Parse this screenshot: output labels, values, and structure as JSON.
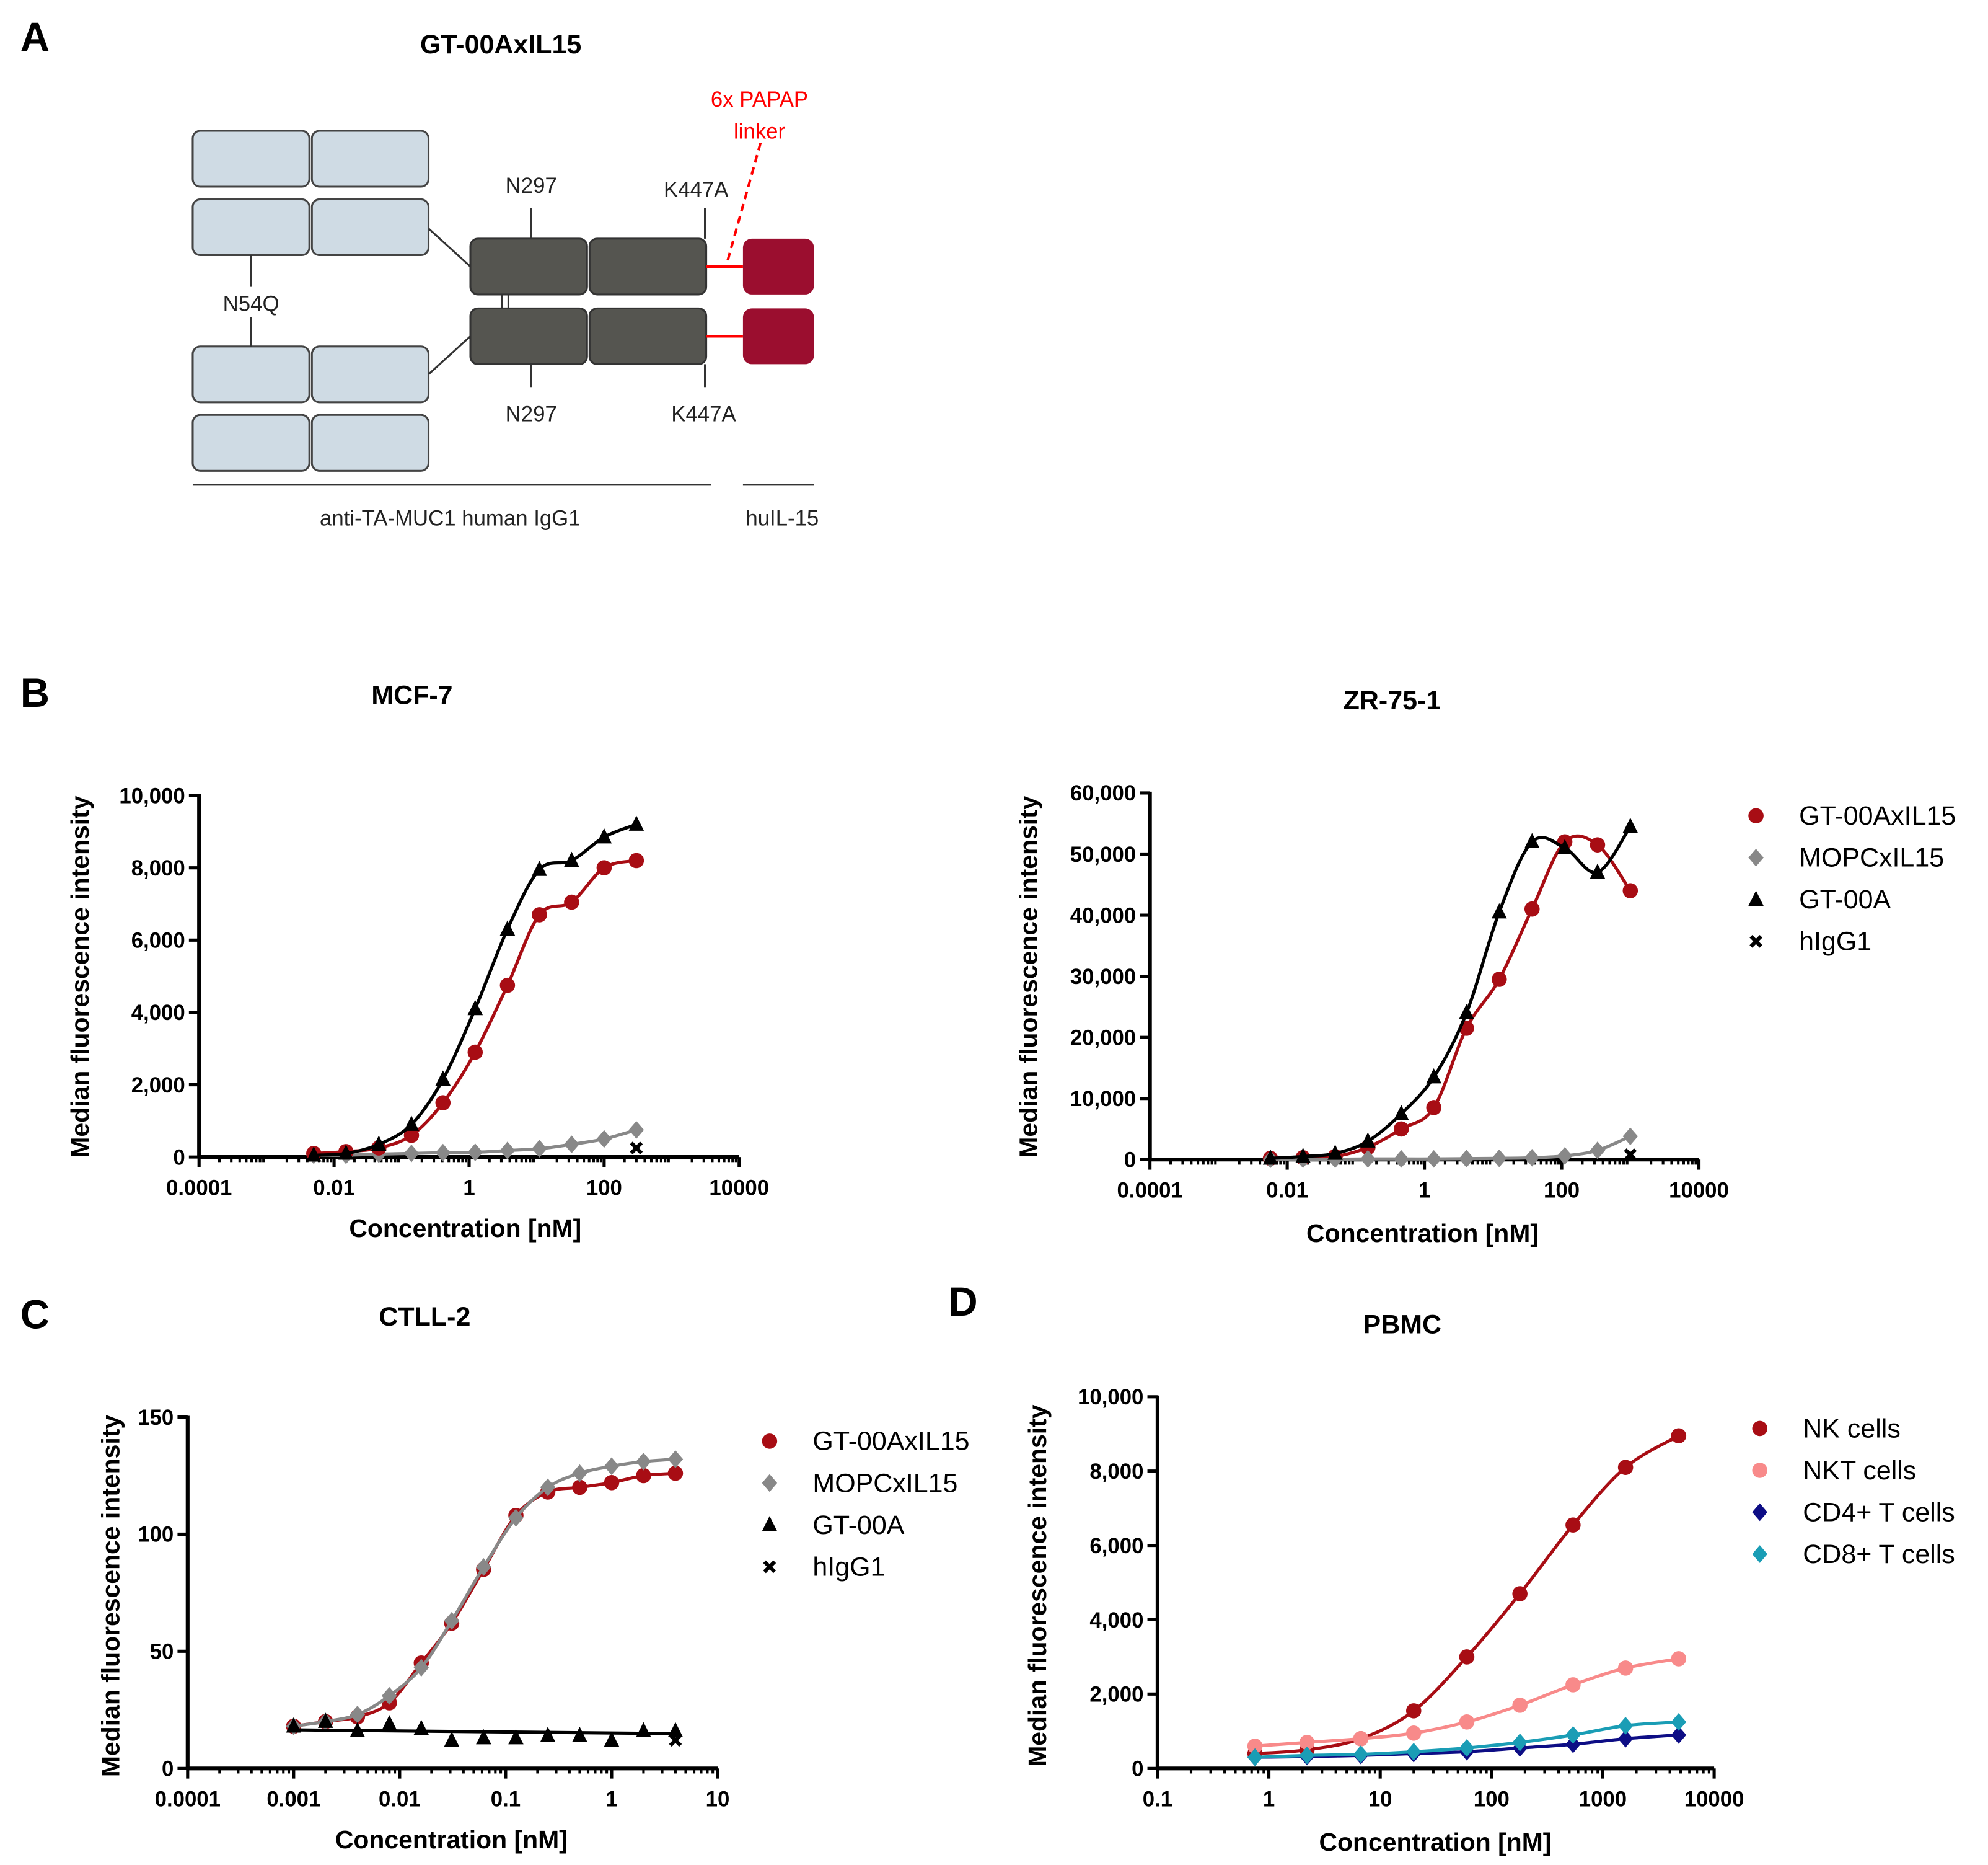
{
  "panels": {
    "a": "A",
    "b": "B",
    "c": "C",
    "d": "D"
  },
  "diagram": {
    "title": "GT-00AxIL15",
    "linker_line1": "6x PAPAP",
    "linker_line2": "linker",
    "n297_top": "N297",
    "k447a_top": "K447A",
    "n54q": "N54Q",
    "n297_bottom": "N297",
    "k447a_bottom": "K447A",
    "igg_label": "anti-TA-MUC1 human IgG1",
    "il15_label": "huIL-15",
    "colors": {
      "fab": "#cfdbe4",
      "fc": "#555550",
      "il15": "#9b0e2f",
      "linker": "#ff0000"
    }
  },
  "chart_data": [
    {
      "type": "scatter",
      "title": "MCF-7",
      "xlabel": "Concentration [nM]",
      "ylabel": "Median fluorescence intensity",
      "xscale": "log",
      "xlim": [
        0.0001,
        10000
      ],
      "ylim": [
        0,
        10000
      ],
      "xticks": [
        {
          "v": 0.0001,
          "label": "0.0001"
        },
        {
          "v": 0.01,
          "label": "0.01"
        },
        {
          "v": 1,
          "label": "1"
        },
        {
          "v": 100,
          "label": "100"
        },
        {
          "v": 10000,
          "label": "10000"
        }
      ],
      "yticks": [
        {
          "v": 0,
          "label": "0"
        },
        {
          "v": 2000,
          "label": "2,000"
        },
        {
          "v": 4000,
          "label": "4,000"
        },
        {
          "v": 6000,
          "label": "6,000"
        },
        {
          "v": 8000,
          "label": "8,000"
        },
        {
          "v": 10000,
          "label": "10,000"
        }
      ],
      "legend": null,
      "series": [
        {
          "name": "MOPCxIL15",
          "marker": "diamond",
          "color": "#888888",
          "fit": true,
          "x": [
            0.005,
            0.015,
            0.046,
            0.14,
            0.41,
            1.23,
            3.7,
            11,
            33,
            100,
            300
          ],
          "y": [
            50,
            50,
            80,
            100,
            120,
            130,
            180,
            230,
            350,
            500,
            750
          ]
        },
        {
          "name": "GT-00AxIL15",
          "marker": "circle",
          "color": "#a80d14",
          "fit": true,
          "x": [
            0.005,
            0.015,
            0.046,
            0.14,
            0.41,
            1.23,
            3.7,
            11,
            33,
            100,
            300
          ],
          "y": [
            100,
            150,
            250,
            600,
            1500,
            2900,
            4750,
            6700,
            7050,
            8000,
            8200
          ]
        },
        {
          "name": "GT-00A",
          "marker": "triangle",
          "color": "#000000",
          "fit": true,
          "x": [
            0.005,
            0.015,
            0.046,
            0.14,
            0.41,
            1.23,
            3.7,
            11,
            33,
            100,
            300
          ],
          "y": [
            50,
            100,
            350,
            900,
            2150,
            4100,
            6300,
            7950,
            8200,
            8850,
            9200
          ]
        },
        {
          "name": "hIgG1",
          "marker": "x",
          "color": "#000000",
          "fit": false,
          "x": [
            300
          ],
          "y": [
            250
          ]
        }
      ]
    },
    {
      "type": "scatter",
      "title": "ZR-75-1",
      "xlabel": "Concentration [nM]",
      "ylabel": "Median fluorescence intensity",
      "xscale": "log",
      "xlim": [
        0.0001,
        10000
      ],
      "ylim": [
        0,
        60000
      ],
      "xticks": [
        {
          "v": 0.0001,
          "label": "0.0001"
        },
        {
          "v": 0.01,
          "label": "0.01"
        },
        {
          "v": 1,
          "label": "1"
        },
        {
          "v": 100,
          "label": "100"
        },
        {
          "v": 10000,
          "label": "10000"
        }
      ],
      "yticks": [
        {
          "v": 0,
          "label": "0"
        },
        {
          "v": 10000,
          "label": "10,000"
        },
        {
          "v": 20000,
          "label": "20,000"
        },
        {
          "v": 30000,
          "label": "30,000"
        },
        {
          "v": 40000,
          "label": "40,000"
        },
        {
          "v": 50000,
          "label": "50,000"
        },
        {
          "v": 60000,
          "label": "60,000"
        }
      ],
      "legend": "right",
      "series": [
        {
          "name": "GT-00AxIL15",
          "marker": "circle",
          "color": "#a80d14",
          "fit": true,
          "x": [
            0.0057,
            0.017,
            0.05,
            0.15,
            0.46,
            1.37,
            4.1,
            12.3,
            37,
            111,
            333,
            1000
          ],
          "y": [
            200,
            300,
            500,
            2000,
            5000,
            8500,
            21500,
            29500,
            41000,
            52000,
            51500,
            44000
          ]
        },
        {
          "name": "MOPCxIL15",
          "marker": "diamond",
          "color": "#888888",
          "fit": true,
          "x": [
            0.0057,
            0.017,
            0.05,
            0.15,
            0.46,
            1.37,
            4.1,
            12.3,
            37,
            111,
            333,
            1000
          ],
          "y": [
            50,
            50,
            50,
            100,
            100,
            100,
            150,
            200,
            300,
            600,
            1500,
            3800
          ]
        },
        {
          "name": "GT-00A",
          "marker": "triangle",
          "color": "#000000",
          "fit": true,
          "x": [
            0.0057,
            0.017,
            0.05,
            0.15,
            0.46,
            1.37,
            4.1,
            12.3,
            37,
            111,
            333,
            1000
          ],
          "y": [
            200,
            500,
            1000,
            3000,
            7500,
            13500,
            24000,
            40500,
            52000,
            51000,
            47000,
            54500
          ]
        },
        {
          "name": "hIgG1",
          "marker": "x",
          "color": "#000000",
          "fit": false,
          "x": [
            1000
          ],
          "y": [
            800
          ]
        }
      ]
    },
    {
      "type": "scatter",
      "title": "CTLL-2",
      "xlabel": "Concentration [nM]",
      "ylabel": "Median fluorescence intensity",
      "xscale": "log",
      "xlim": [
        0.0001,
        10
      ],
      "ylim": [
        0,
        150
      ],
      "xticks": [
        {
          "v": 0.0001,
          "label": "0.0001"
        },
        {
          "v": 0.001,
          "label": "0.001"
        },
        {
          "v": 0.01,
          "label": "0.01"
        },
        {
          "v": 0.1,
          "label": "0.1"
        },
        {
          "v": 1,
          "label": "1"
        },
        {
          "v": 10,
          "label": "10"
        }
      ],
      "yticks": [
        {
          "v": 0,
          "label": "0"
        },
        {
          "v": 50,
          "label": "50"
        },
        {
          "v": 100,
          "label": "100"
        },
        {
          "v": 150,
          "label": "150"
        }
      ],
      "legend": "right",
      "series": [
        {
          "name": "GT-00AxIL15",
          "marker": "circle",
          "color": "#a80d14",
          "fit": true,
          "x": [
            0.001,
            0.002,
            0.004,
            0.008,
            0.016,
            0.031,
            0.062,
            0.125,
            0.25,
            0.5,
            1,
            2,
            4
          ],
          "y": [
            18,
            20,
            22,
            28,
            45,
            62,
            85,
            108,
            118,
            120,
            122,
            125,
            126
          ]
        },
        {
          "name": "MOPCxIL15",
          "marker": "diamond",
          "color": "#888888",
          "fit": true,
          "x": [
            0.001,
            0.002,
            0.004,
            0.008,
            0.016,
            0.031,
            0.062,
            0.125,
            0.25,
            0.5,
            1,
            2,
            4
          ],
          "y": [
            18,
            20,
            23,
            31,
            43,
            63,
            86,
            107,
            120,
            126,
            129,
            131,
            132
          ]
        },
        {
          "name": "GT-00A",
          "marker": "triangle",
          "color": "#000000",
          "fit": "flat",
          "x": [
            0.001,
            0.002,
            0.004,
            0.008,
            0.016,
            0.031,
            0.062,
            0.125,
            0.25,
            0.5,
            1,
            2,
            4
          ],
          "y": [
            18,
            20,
            16,
            19,
            17,
            12,
            13,
            13,
            14,
            14,
            12,
            16,
            16
          ]
        },
        {
          "name": "hIgG1",
          "marker": "x",
          "color": "#000000",
          "fit": false,
          "x": [
            4
          ],
          "y": [
            12
          ]
        }
      ]
    },
    {
      "type": "scatter",
      "title": "PBMC",
      "xlabel": "Concentration [nM]",
      "ylabel": "Median fluorescence intensity",
      "xscale": "log",
      "xlim": [
        0.1,
        10000
      ],
      "ylim": [
        0,
        10000
      ],
      "xticks": [
        {
          "v": 0.1,
          "label": "0.1"
        },
        {
          "v": 1,
          "label": "1"
        },
        {
          "v": 10,
          "label": "10"
        },
        {
          "v": 100,
          "label": "100"
        },
        {
          "v": 1000,
          "label": "1000"
        },
        {
          "v": 10000,
          "label": "10000"
        }
      ],
      "yticks": [
        {
          "v": 0,
          "label": "0"
        },
        {
          "v": 2000,
          "label": "2,000"
        },
        {
          "v": 4000,
          "label": "4,000"
        },
        {
          "v": 6000,
          "label": "6,000"
        },
        {
          "v": 8000,
          "label": "8,000"
        },
        {
          "v": 10000,
          "label": "10,000"
        }
      ],
      "legend": "right",
      "series": [
        {
          "name": "NK cells",
          "marker": "circle",
          "color": "#a80d14",
          "fit": true,
          "x": [
            0.75,
            2.2,
            6.7,
            20,
            60,
            180,
            540,
            1600,
            4800
          ],
          "y": [
            400,
            500,
            800,
            1550,
            3000,
            4700,
            6550,
            8100,
            8950
          ]
        },
        {
          "name": "NKT cells",
          "marker": "circle",
          "color": "#f88a8a",
          "fit": true,
          "x": [
            0.75,
            2.2,
            6.7,
            20,
            60,
            180,
            540,
            1600,
            4800
          ],
          "y": [
            600,
            700,
            800,
            950,
            1250,
            1700,
            2250,
            2700,
            2950
          ]
        },
        {
          "name": "CD4+ T cells",
          "marker": "diamond",
          "color": "#0d0d85",
          "fit": true,
          "x": [
            0.75,
            2.2,
            6.7,
            20,
            60,
            180,
            540,
            1600,
            4800
          ],
          "y": [
            300,
            320,
            350,
            400,
            450,
            550,
            650,
            800,
            900
          ]
        },
        {
          "name": "CD8+ T cells",
          "marker": "diamond",
          "color": "#1a9db5",
          "fit": true,
          "x": [
            0.75,
            2.2,
            6.7,
            20,
            60,
            180,
            540,
            1600,
            4800
          ],
          "y": [
            300,
            350,
            380,
            450,
            550,
            700,
            900,
            1150,
            1250
          ]
        }
      ]
    }
  ]
}
